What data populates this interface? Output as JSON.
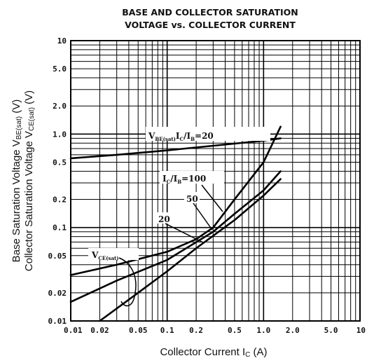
{
  "chart_data": {
    "type": "line",
    "title_line1": "BASE AND COLLECTOR SATURATION",
    "title_line2": "VOLTAGE vs. COLLECTOR CURRENT",
    "xlabel": "Collector Current  I",
    "xlabel_sub": "C",
    "xlabel_unit": " (A)",
    "ylabel_line1": "Base Saturation Voltage  V",
    "ylabel_line1_sub": "BE(sat)",
    "ylabel_line1_unit": " (V)",
    "ylabel_line2": "Collector Saturation Voltage  V",
    "ylabel_line2_sub": "CE(sat)",
    "ylabel_line2_unit": " (V)",
    "x_scale": "log",
    "y_scale": "log",
    "xlim": [
      0.01,
      10
    ],
    "ylim": [
      0.01,
      10
    ],
    "grid": true,
    "x_ticks": [
      {
        "value": 0.01,
        "label": "0.01"
      },
      {
        "value": 0.02,
        "label": "0.02"
      },
      {
        "value": 0.05,
        "label": "0.05"
      },
      {
        "value": 0.1,
        "label": "0.1"
      },
      {
        "value": 0.2,
        "label": "0.2"
      },
      {
        "value": 0.5,
        "label": "0.5"
      },
      {
        "value": 1.0,
        "label": "1.0"
      },
      {
        "value": 2.0,
        "label": "2.0"
      },
      {
        "value": 5.0,
        "label": "5.0"
      },
      {
        "value": 10,
        "label": "10"
      }
    ],
    "y_ticks": [
      {
        "value": 0.01,
        "label": "0.01"
      },
      {
        "value": 0.02,
        "label": "0.02"
      },
      {
        "value": 0.05,
        "label": "0.05"
      },
      {
        "value": 0.1,
        "label": "0.1"
      },
      {
        "value": 0.2,
        "label": "0.2"
      },
      {
        "value": 0.5,
        "label": "0.5"
      },
      {
        "value": 1.0,
        "label": "1.0"
      },
      {
        "value": 2.0,
        "label": "2.0"
      },
      {
        "value": 5.0,
        "label": "5.0"
      },
      {
        "value": 10,
        "label": "10"
      }
    ],
    "series": [
      {
        "name": "VBE(sat) IC/IB=20",
        "x": [
          0.01,
          0.03,
          0.1,
          0.3,
          1.0,
          1.5
        ],
        "y": [
          0.55,
          0.6,
          0.67,
          0.75,
          0.85,
          0.9
        ]
      },
      {
        "name": "VCE(sat) IC/IB=100",
        "x": [
          0.01,
          0.03,
          0.1,
          0.2,
          0.3,
          0.5,
          1.0,
          1.5
        ],
        "y": [
          0.031,
          0.04,
          0.055,
          0.075,
          0.1,
          0.2,
          0.5,
          1.2
        ]
      },
      {
        "name": "VCE(sat) IC/IB=50",
        "x": [
          0.01,
          0.03,
          0.1,
          0.3,
          0.5,
          1.0,
          1.5
        ],
        "y": [
          0.016,
          0.027,
          0.045,
          0.09,
          0.14,
          0.25,
          0.4
        ]
      },
      {
        "name": "VCE(sat) IC/IB=20",
        "x": [
          0.02,
          0.05,
          0.1,
          0.2,
          0.5,
          1.0,
          1.5
        ],
        "y": [
          0.01,
          0.02,
          0.034,
          0.06,
          0.12,
          0.22,
          0.33
        ]
      }
    ],
    "annotations": {
      "vbe_label": "V",
      "vbe_sub": "BE(sat)",
      "vbe_ratio": "I",
      "vbe_ratio_sub1": "C",
      "vbe_ratio_mid": "/I",
      "vbe_ratio_sub2": "B",
      "vbe_ratio_value": "=20",
      "ratio_100": "I",
      "ratio_100_sub1": "C",
      "ratio_100_mid": "/I",
      "ratio_100_sub2": "B",
      "ratio_100_value": "=100",
      "label_50": "50",
      "label_20": "20",
      "vce_label": "V",
      "vce_sub": "CE(sat)"
    }
  }
}
